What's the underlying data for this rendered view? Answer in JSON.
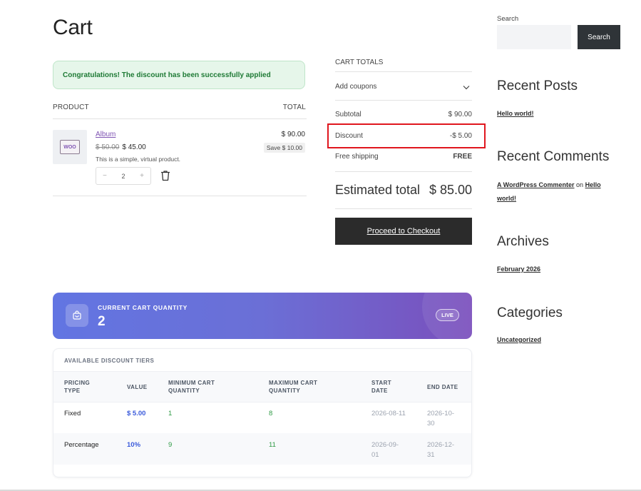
{
  "page": {
    "title": "Cart"
  },
  "notice": {
    "text": "Congratulations! The discount has been successfully applied"
  },
  "cart_table": {
    "col_product": "PRODUCT",
    "col_total": "TOTAL",
    "item": {
      "thumb_text": "WOO",
      "name": "Album",
      "old_price": "$ 50.00",
      "price": "$ 45.00",
      "description": "This is a simple, virtual product.",
      "qty_minus": "−",
      "quantity": "2",
      "qty_plus": "+",
      "line_total": "$ 90.00",
      "save_badge": "Save $ 10.00",
      "remove_icon": "trash-icon"
    }
  },
  "totals": {
    "heading": "CART TOTALS",
    "add_coupons": "Add coupons",
    "subtotal_label": "Subtotal",
    "subtotal_value": "$ 90.00",
    "discount_label": "Discount",
    "discount_value": "-$ 5.00",
    "shipping_label": "Free shipping",
    "shipping_value": "FREE",
    "estimated_label": "Estimated total",
    "estimated_value": "$ 85.00",
    "checkout_label": "Proceed to Checkout",
    "highlight_color": "#e0161e"
  },
  "quantity_banner": {
    "label": "CURRENT CART QUANTITY",
    "count": "2",
    "live": "LIVE",
    "icon": "shopping-bag-icon"
  },
  "tiers": {
    "title": "AVAILABLE DISCOUNT TIERS",
    "headers": {
      "type_1": "PRICING",
      "type_2": "TYPE",
      "value": "VALUE",
      "min_1": "MINIMUM CART",
      "min_2": "QUANTITY",
      "max_1": "MAXIMUM CART",
      "max_2": "QUANTITY",
      "start_1": "START",
      "start_2": "DATE",
      "end": "END DATE"
    },
    "rows": [
      {
        "type": "Fixed",
        "value": "$ 5.00",
        "min": "1",
        "max": "8",
        "start": "2026-08-11",
        "end_1": "2026-10-",
        "end_2": "30"
      },
      {
        "type": "Percentage",
        "value": "10%",
        "min": "9",
        "max": "11",
        "start_1": "2026-09-",
        "start_2": "01",
        "end_1": "2026-12-",
        "end_2": "31"
      }
    ]
  },
  "sidebar": {
    "search_label": "Search",
    "search_value": "",
    "search_button": "Search",
    "recent_posts_heading": "Recent Posts",
    "recent_post": "Hello world!",
    "recent_comments_heading": "Recent Comments",
    "commenter": "A WordPress Commenter",
    "comment_on": "on",
    "comment_post": "Hello world!",
    "archives_heading": "Archives",
    "archive": "February 2026",
    "categories_heading": "Categories",
    "category": "Uncategorized"
  }
}
